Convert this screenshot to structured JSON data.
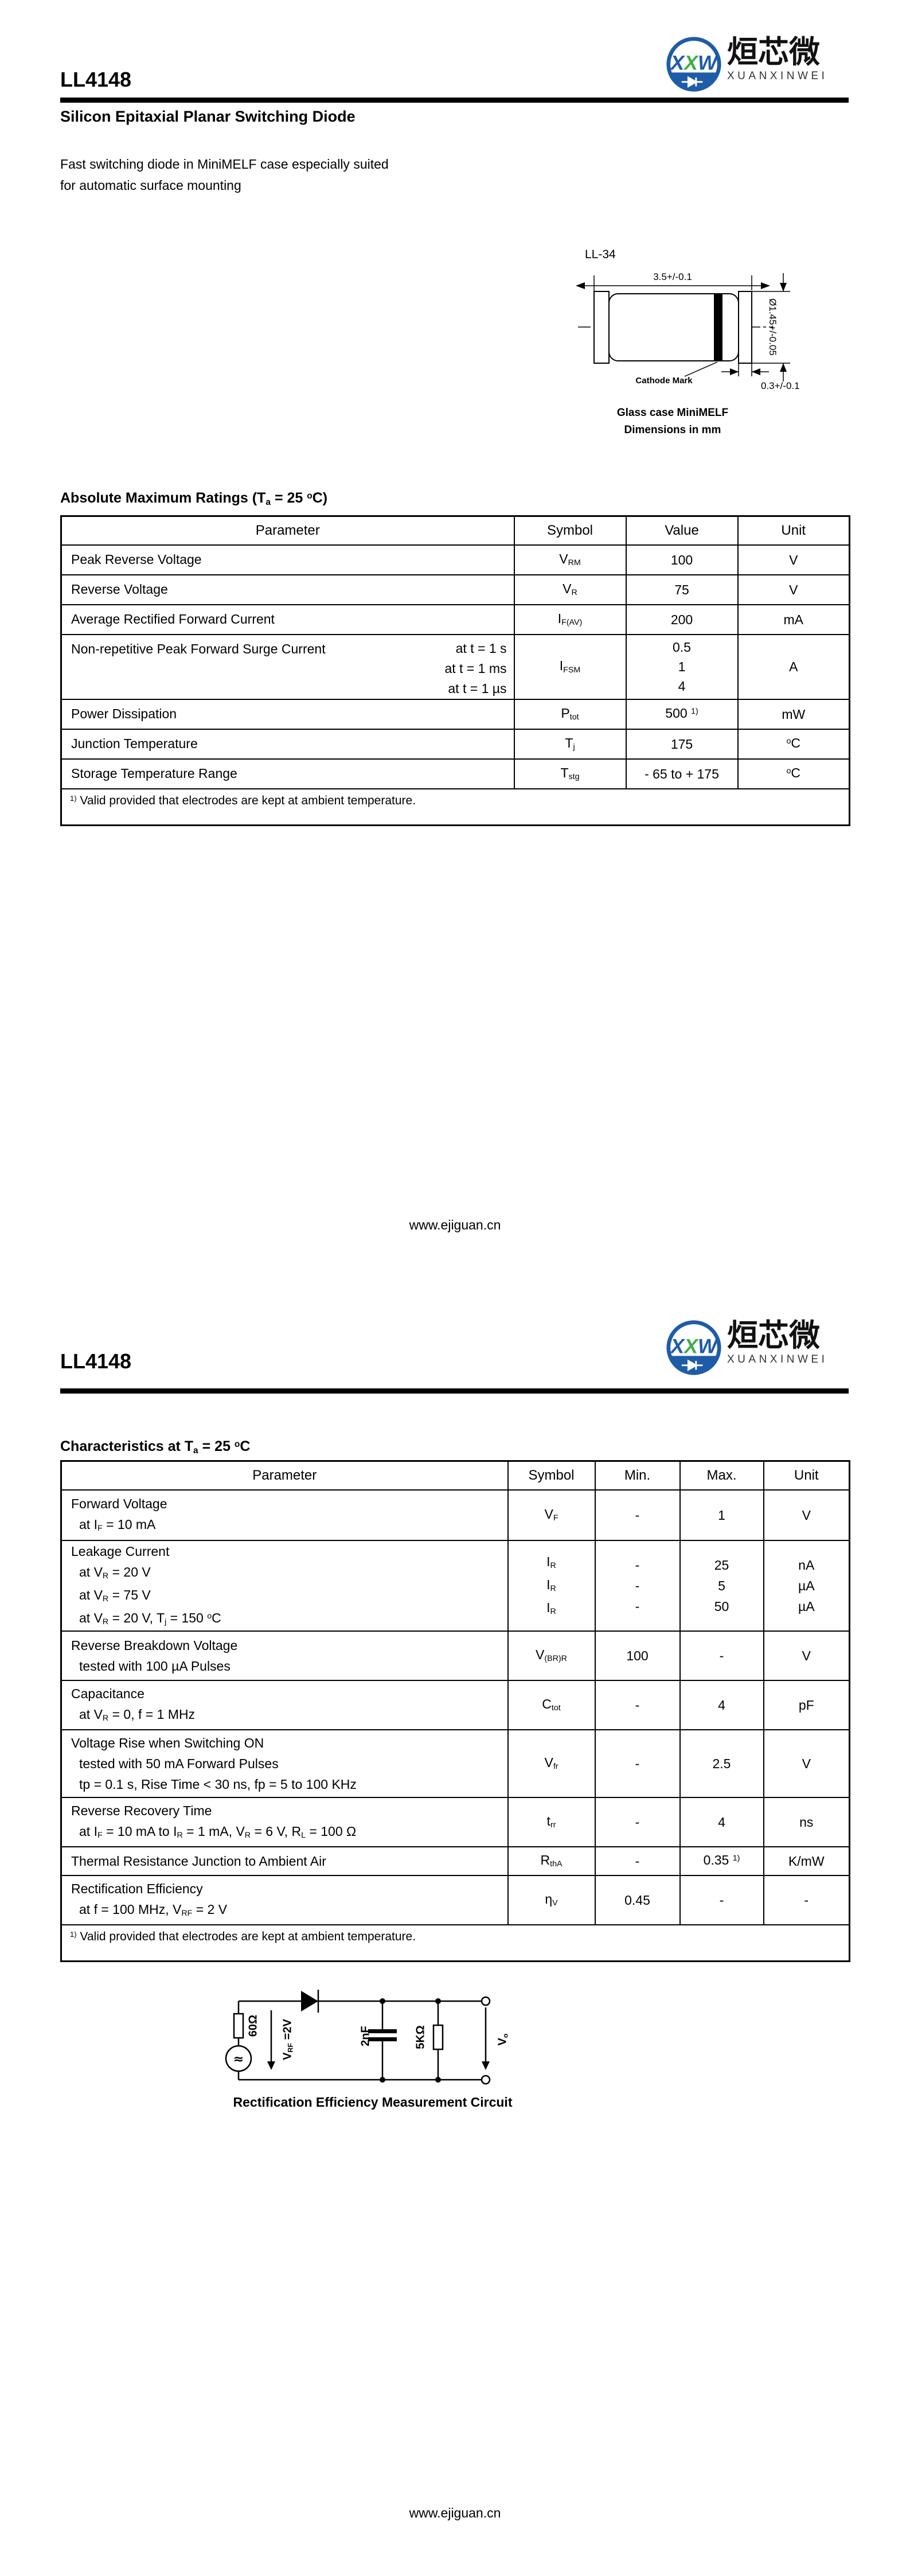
{
  "logo": {
    "m1": "X",
    "m2": "X",
    "m3": "W",
    "chinese": "烜芯微",
    "latin": "XUANXINWEI",
    "blue": "#1e5ca8",
    "green": "#3fae49"
  },
  "page1": {
    "title": "LL4148",
    "subtitle": "Silicon Epitaxial Planar Switching Diode",
    "description": [
      "Fast switching diode in MiniMELF case especially suited",
      "for automatic surface mounting"
    ],
    "package": {
      "name": "LL-34",
      "dim_length": "3.5+/-0.1",
      "dim_diameter": "Ø1.45+/-0.05",
      "dim_band": "0.3+/-0.1",
      "cathode_label": "Cathode Mark",
      "caption1": "Glass case MiniMELF",
      "caption2": "Dimensions in mm"
    },
    "abs_max": {
      "heading": [
        {
          "t": "Absolute Maximum Ratings (T"
        },
        {
          "sub": "a"
        },
        {
          "t": " = 25 "
        },
        {
          "sup": "o"
        },
        {
          "t": "C)"
        }
      ],
      "headers": [
        "Parameter",
        "Symbol",
        "Value",
        "Unit"
      ],
      "rows": [
        {
          "param": [
            {
              "t": "Peak Reverse Voltage"
            }
          ],
          "symbol": [
            {
              "t": "V"
            },
            {
              "sub": "RM"
            }
          ],
          "value": [
            {
              "t": "100"
            }
          ],
          "unit": [
            {
              "t": "V"
            }
          ]
        },
        {
          "param": [
            {
              "t": "Reverse Voltage"
            }
          ],
          "symbol": [
            {
              "t": "V"
            },
            {
              "sub": "R"
            }
          ],
          "value": [
            {
              "t": "75"
            }
          ],
          "unit": [
            {
              "t": "V"
            }
          ]
        },
        {
          "param": [
            {
              "t": "Average Rectified Forward Current"
            }
          ],
          "symbol": [
            {
              "t": "I"
            },
            {
              "sub": "F(AV)"
            }
          ],
          "value": [
            {
              "t": "200"
            }
          ],
          "unit": [
            {
              "t": "mA"
            }
          ]
        },
        {
          "param": [
            {
              "t": "Non-repetitive Peak Forward Surge Current"
            }
          ],
          "conditions": [
            "at t = 1 s",
            "at t = 1 ms",
            "at t = 1 µs"
          ],
          "symbol": [
            {
              "t": "I"
            },
            {
              "sub": "FSM"
            }
          ],
          "value": [
            {
              "t": "0.5"
            },
            {
              "br": true
            },
            {
              "t": "1"
            },
            {
              "br": true
            },
            {
              "t": "4"
            }
          ],
          "unit": [
            {
              "t": "A"
            }
          ]
        },
        {
          "param": [
            {
              "t": "Power Dissipation"
            }
          ],
          "symbol": [
            {
              "t": "P"
            },
            {
              "sub": "tot"
            }
          ],
          "value": [
            {
              "t": "500 "
            },
            {
              "sup": "1)"
            }
          ],
          "unit": [
            {
              "t": "mW"
            }
          ]
        },
        {
          "param": [
            {
              "t": "Junction Temperature"
            }
          ],
          "symbol": [
            {
              "t": "T"
            },
            {
              "sub": "j"
            }
          ],
          "value": [
            {
              "t": "175"
            }
          ],
          "unit": [
            {
              "sup": "o"
            },
            {
              "t": "C"
            }
          ]
        },
        {
          "param": [
            {
              "t": "Storage Temperature Range"
            }
          ],
          "symbol": [
            {
              "t": "T"
            },
            {
              "sub": "stg"
            }
          ],
          "value": [
            {
              "t": "- 65 to + 175"
            }
          ],
          "unit": [
            {
              "sup": "o"
            },
            {
              "t": "C"
            }
          ]
        }
      ],
      "footnote": [
        {
          "sup": "1)"
        },
        {
          "t": " Valid provided that electrodes are kept at ambient temperature."
        }
      ]
    },
    "footer": "www.ejiguan.cn"
  },
  "page2": {
    "title": "LL4148",
    "characteristics": {
      "heading": [
        {
          "t": "Characteristics at T"
        },
        {
          "sub": "a"
        },
        {
          "t": " = 25 "
        },
        {
          "sup": "o"
        },
        {
          "t": "C"
        }
      ],
      "headers": [
        "Parameter",
        "Symbol",
        "Min.",
        "Max.",
        "Unit"
      ],
      "rows": [
        {
          "name": [
            {
              "t": "Forward Voltage"
            }
          ],
          "conds": [
            [
              {
                "t": "at I"
              },
              {
                "sub": "F"
              },
              {
                "t": " = 10 mA"
              }
            ]
          ],
          "symbol": [
            {
              "t": "V"
            },
            {
              "sub": "F"
            }
          ],
          "min": [
            {
              "t": "-"
            }
          ],
          "max": [
            {
              "t": "1"
            }
          ],
          "unit": [
            {
              "t": "V"
            }
          ]
        },
        {
          "name": [
            {
              "t": "Leakage Current"
            }
          ],
          "conds": [
            [
              {
                "t": "at V"
              },
              {
                "sub": "R"
              },
              {
                "t": " = 20 V"
              }
            ],
            [
              {
                "t": "at V"
              },
              {
                "sub": "R"
              },
              {
                "t": " = 75 V"
              }
            ],
            [
              {
                "t": "at V"
              },
              {
                "sub": "R"
              },
              {
                "t": " = 20 V, T"
              },
              {
                "sub": "j"
              },
              {
                "t": " = 150 "
              },
              {
                "sup": "o"
              },
              {
                "t": "C"
              }
            ]
          ],
          "symbol": [
            {
              "t": "I"
            },
            {
              "sub": "R"
            },
            {
              "br": true
            },
            {
              "t": "I"
            },
            {
              "sub": "R"
            },
            {
              "br": true
            },
            {
              "t": "I"
            },
            {
              "sub": "R"
            }
          ],
          "min": [
            {
              "t": "-"
            },
            {
              "br": true
            },
            {
              "t": "-"
            },
            {
              "br": true
            },
            {
              "t": "-"
            }
          ],
          "max": [
            {
              "t": "25"
            },
            {
              "br": true
            },
            {
              "t": "5"
            },
            {
              "br": true
            },
            {
              "t": "50"
            }
          ],
          "unit": [
            {
              "t": "nA"
            },
            {
              "br": true
            },
            {
              "t": "µA"
            },
            {
              "br": true
            },
            {
              "t": "µA"
            }
          ]
        },
        {
          "name": [
            {
              "t": "Reverse Breakdown Voltage"
            }
          ],
          "conds": [
            [
              {
                "t": "tested with 100 µA Pulses"
              }
            ]
          ],
          "symbol": [
            {
              "t": "V"
            },
            {
              "sub": "(BR)R"
            }
          ],
          "min": [
            {
              "t": "100"
            }
          ],
          "max": [
            {
              "t": "-"
            }
          ],
          "unit": [
            {
              "t": "V"
            }
          ]
        },
        {
          "name": [
            {
              "t": "Capacitance"
            }
          ],
          "conds": [
            [
              {
                "t": "at V"
              },
              {
                "sub": "R"
              },
              {
                "t": " = 0, f = 1 MHz"
              }
            ]
          ],
          "symbol": [
            {
              "t": "C"
            },
            {
              "sub": "tot"
            }
          ],
          "min": [
            {
              "t": "-"
            }
          ],
          "max": [
            {
              "t": "4"
            }
          ],
          "unit": [
            {
              "t": "pF"
            }
          ]
        },
        {
          "name": [
            {
              "t": "Voltage Rise when Switching ON"
            }
          ],
          "conds": [
            [
              {
                "t": "tested with 50 mA Forward Pulses"
              }
            ],
            [
              {
                "t": "tp = 0.1 s, Rise Time < 30 ns, fp = 5 to 100 KHz"
              }
            ]
          ],
          "symbol": [
            {
              "t": "V"
            },
            {
              "sub": "fr"
            }
          ],
          "min": [
            {
              "t": "-"
            }
          ],
          "max": [
            {
              "t": "2.5"
            }
          ],
          "unit": [
            {
              "t": "V"
            }
          ]
        },
        {
          "name": [
            {
              "t": "Reverse Recovery Time"
            }
          ],
          "conds": [
            [
              {
                "t": "at I"
              },
              {
                "sub": "F"
              },
              {
                "t": " = 10 mA to I"
              },
              {
                "sub": "R"
              },
              {
                "t": " = 1 mA, V"
              },
              {
                "sub": "R"
              },
              {
                "t": " = 6 V, R"
              },
              {
                "sub": "L"
              },
              {
                "t": " = 100 Ω"
              }
            ]
          ],
          "symbol": [
            {
              "t": "t"
            },
            {
              "sub": "rr"
            }
          ],
          "min": [
            {
              "t": "-"
            }
          ],
          "max": [
            {
              "t": "4"
            }
          ],
          "unit": [
            {
              "t": "ns"
            }
          ]
        },
        {
          "name": [
            {
              "t": "Thermal Resistance Junction to Ambient Air"
            }
          ],
          "conds": [],
          "symbol": [
            {
              "t": "R"
            },
            {
              "sub": "thA"
            }
          ],
          "min": [
            {
              "t": "-"
            }
          ],
          "max": [
            {
              "t": "0.35 "
            },
            {
              "sup": "1)"
            }
          ],
          "unit": [
            {
              "t": "K/mW"
            }
          ]
        },
        {
          "name": [
            {
              "t": "Rectification Efficiency"
            }
          ],
          "conds": [
            [
              {
                "t": "at f = 100 MHz, V"
              },
              {
                "sub": "RF"
              },
              {
                "t": " = 2 V"
              }
            ]
          ],
          "symbol": [
            {
              "t": "η"
            },
            {
              "sub": "V"
            }
          ],
          "min": [
            {
              "t": "0.45"
            }
          ],
          "max": [
            {
              "t": "-"
            }
          ],
          "unit": [
            {
              "t": "-"
            }
          ]
        }
      ],
      "footnote": [
        {
          "sup": "1)"
        },
        {
          "t": " Valid provided that electrodes are kept at ambient temperature."
        }
      ]
    },
    "circuit": {
      "r_source": "60Ω",
      "v_in": [
        {
          "t": "V"
        },
        {
          "sub": "RF"
        },
        {
          "t": " =2V"
        }
      ],
      "cap": "2nF",
      "r_load": "5KΩ",
      "v_out": [
        {
          "t": "V"
        },
        {
          "sub": "o"
        }
      ],
      "source_symbol": "≈",
      "caption": "Rectification Efficiency Measurement Circuit"
    },
    "footer": "www.ejiguan.cn"
  }
}
